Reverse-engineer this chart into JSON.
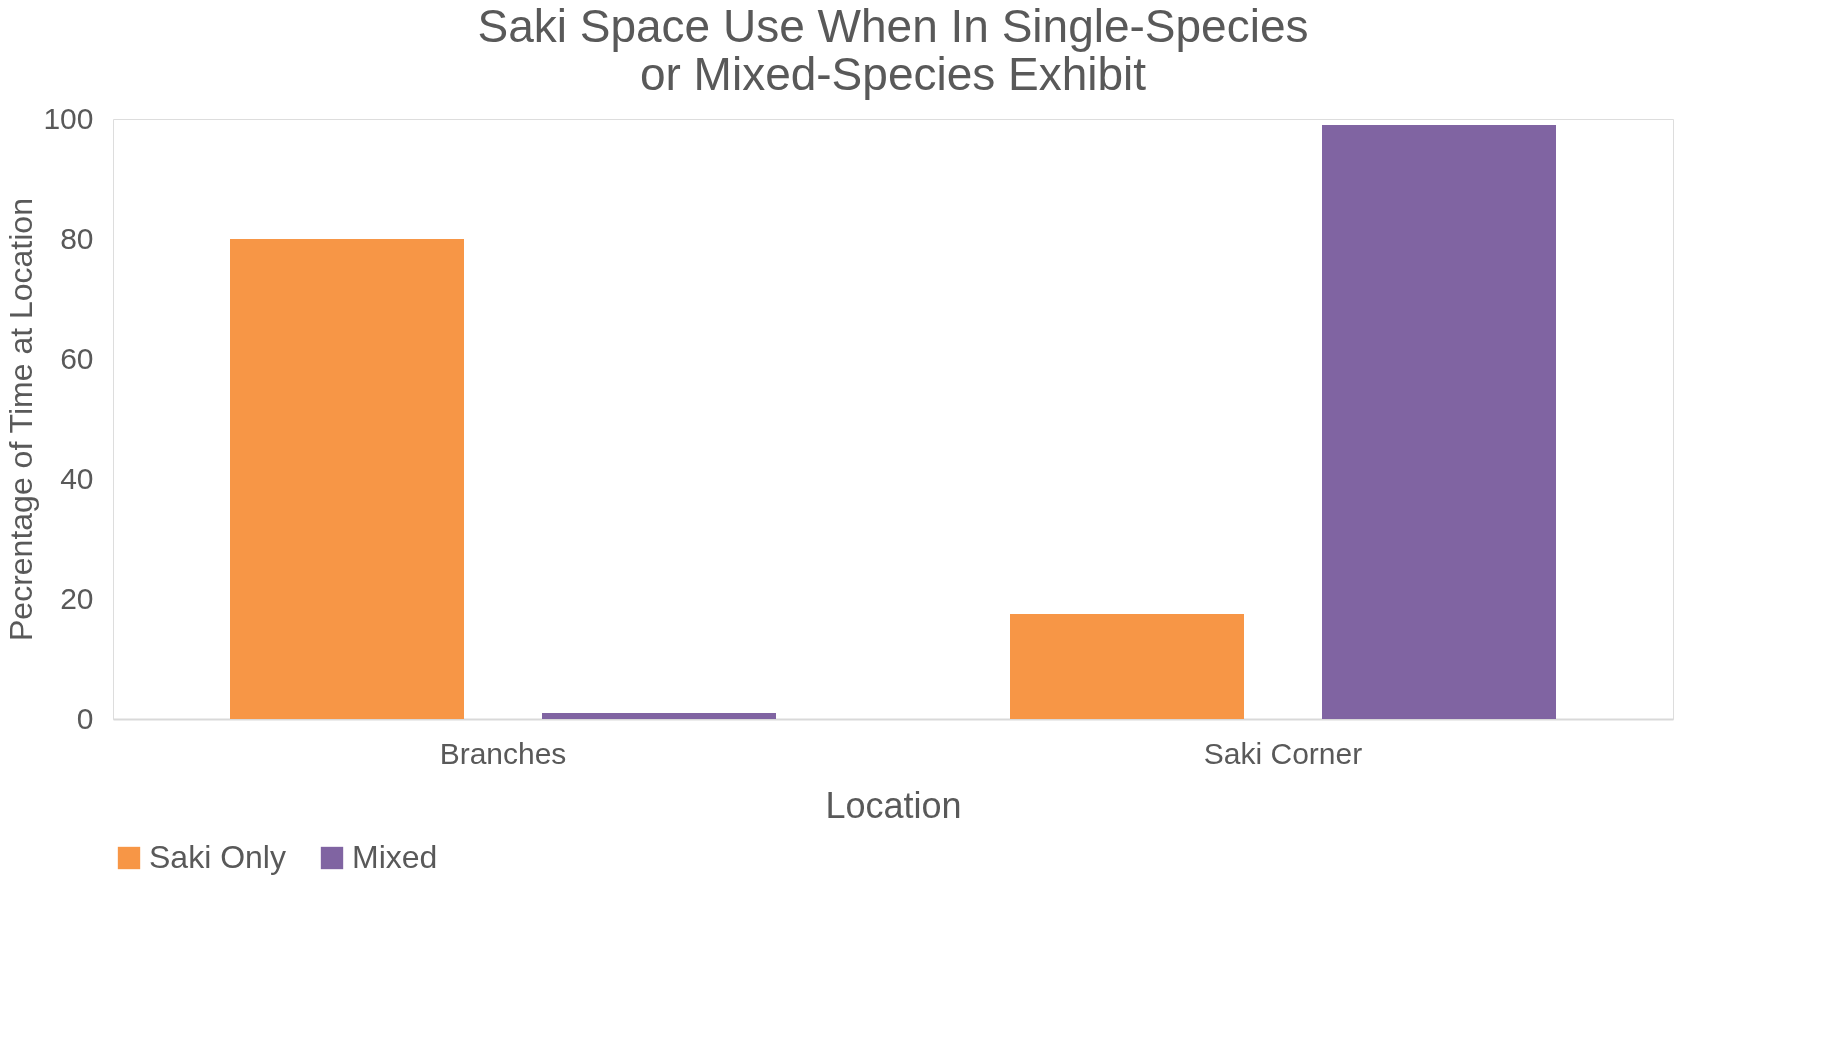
{
  "chart_data": {
    "type": "bar",
    "title": [
      "Saki Space Use When In Single-Species",
      "or Mixed-Species Exhibit"
    ],
    "xlabel": "Location",
    "ylabel": "Pecrentage of Time at Location",
    "categories": [
      "Branches",
      "Saki Corner"
    ],
    "series": [
      {
        "name": "Saki Only",
        "color": "#f79646",
        "values": [
          80,
          17.5
        ]
      },
      {
        "name": "Mixed",
        "color": "#8064a2",
        "values": [
          1,
          99
        ]
      }
    ],
    "ylim": [
      0,
      100
    ],
    "yticks": [
      0,
      20,
      40,
      60,
      80,
      100
    ],
    "grid": false,
    "legend": "bottom"
  }
}
